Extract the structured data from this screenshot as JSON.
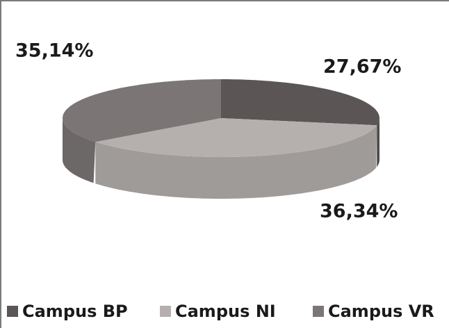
{
  "chart_data": {
    "type": "pie",
    "title": null,
    "categories": [
      "Campus BP",
      "Campus NI",
      "Campus VR"
    ],
    "values": [
      27.67,
      36.34,
      35.14
    ],
    "value_labels": [
      "27,67%",
      "36,34%",
      "35,14%"
    ],
    "colors": [
      "#5b5655",
      "#b5b0ae",
      "#7b7675"
    ],
    "legend": "bottom",
    "three_d": true
  }
}
